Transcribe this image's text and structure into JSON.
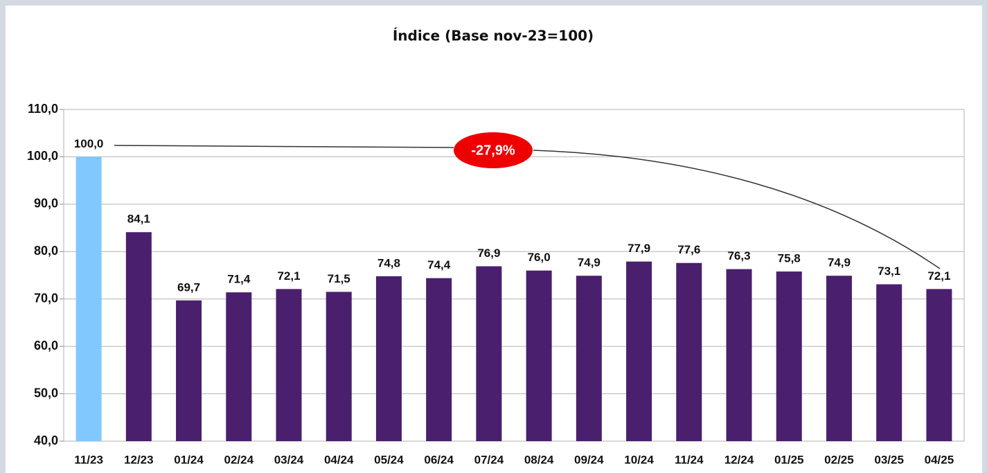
{
  "chart_data": {
    "type": "bar",
    "title": "Índice (Base nov-23=100)",
    "categories": [
      "11/23",
      "12/23",
      "01/24",
      "02/24",
      "03/24",
      "04/24",
      "05/24",
      "06/24",
      "07/24",
      "08/24",
      "09/24",
      "10/24",
      "11/24",
      "12/24",
      "01/25",
      "02/25",
      "03/25",
      "04/25"
    ],
    "values": [
      100.0,
      84.1,
      69.7,
      71.4,
      72.1,
      71.5,
      74.8,
      74.4,
      76.9,
      76.0,
      74.9,
      77.9,
      77.6,
      76.3,
      75.8,
      74.9,
      73.1,
      72.1
    ],
    "value_labels": [
      "100,0",
      "84,1",
      "69,7",
      "71,4",
      "72,1",
      "71,5",
      "74,8",
      "74,4",
      "76,9",
      "76,0",
      "74,9",
      "77,9",
      "77,6",
      "76,3",
      "75,8",
      "74,9",
      "73,1",
      "72,1"
    ],
    "colors": [
      "#80c8ff",
      "#4a1f6d",
      "#4a1f6d",
      "#4a1f6d",
      "#4a1f6d",
      "#4a1f6d",
      "#4a1f6d",
      "#4a1f6d",
      "#4a1f6d",
      "#4a1f6d",
      "#4a1f6d",
      "#4a1f6d",
      "#4a1f6d",
      "#4a1f6d",
      "#4a1f6d",
      "#4a1f6d",
      "#4a1f6d",
      "#4a1f6d"
    ],
    "ylim": [
      40,
      110
    ],
    "yticks": [
      {
        "value": 40,
        "label": "40,0"
      },
      {
        "value": 50,
        "label": "50,0"
      },
      {
        "value": 60,
        "label": "60,0"
      },
      {
        "value": 70,
        "label": "70,0"
      },
      {
        "value": 80,
        "label": "80,0"
      },
      {
        "value": 90,
        "label": "90,0"
      },
      {
        "value": 100,
        "label": "100,0"
      },
      {
        "value": 110,
        "label": "110,0"
      }
    ],
    "grid": true,
    "annotation": "-27,9%"
  }
}
